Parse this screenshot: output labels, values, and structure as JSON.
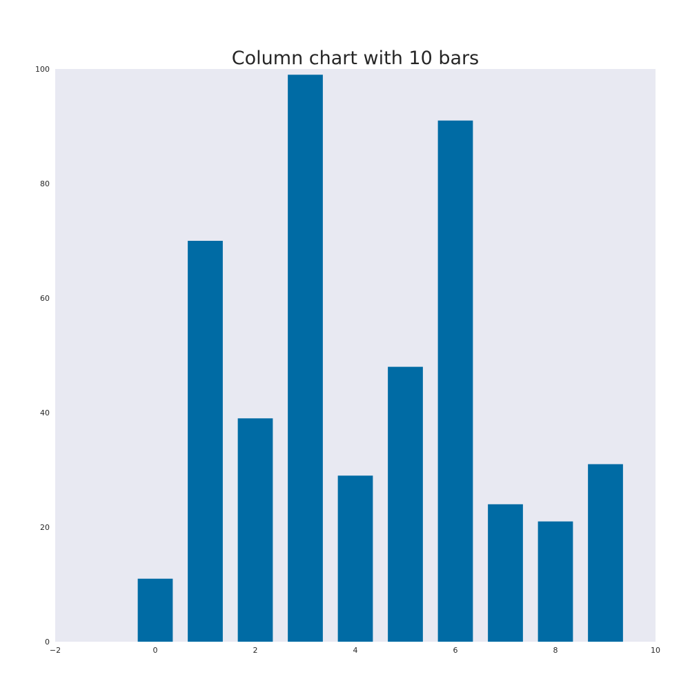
{
  "chart_data": {
    "type": "bar",
    "title": "Column chart with 10 bars",
    "xlabel": "",
    "ylabel": "",
    "x": [
      0,
      1,
      2,
      3,
      4,
      5,
      6,
      7,
      8,
      9
    ],
    "values": [
      11,
      70,
      39,
      99,
      29,
      48,
      91,
      24,
      21,
      31
    ],
    "xlim": [
      -2,
      10
    ],
    "ylim": [
      0,
      100
    ],
    "x_ticks": [
      -2,
      0,
      2,
      4,
      6,
      8,
      10
    ],
    "x_tick_labels": [
      "−2",
      "0",
      "2",
      "4",
      "6",
      "8",
      "10"
    ],
    "y_ticks": [
      0,
      20,
      40,
      60,
      80,
      100
    ],
    "y_tick_labels": [
      "0",
      "20",
      "40",
      "60",
      "80",
      "100"
    ],
    "bar_width": 0.7,
    "grid": false,
    "legend": "none",
    "colors": {
      "bar": "#006ba4",
      "plot_background": "#e8e9f2",
      "text": "#262626"
    }
  }
}
